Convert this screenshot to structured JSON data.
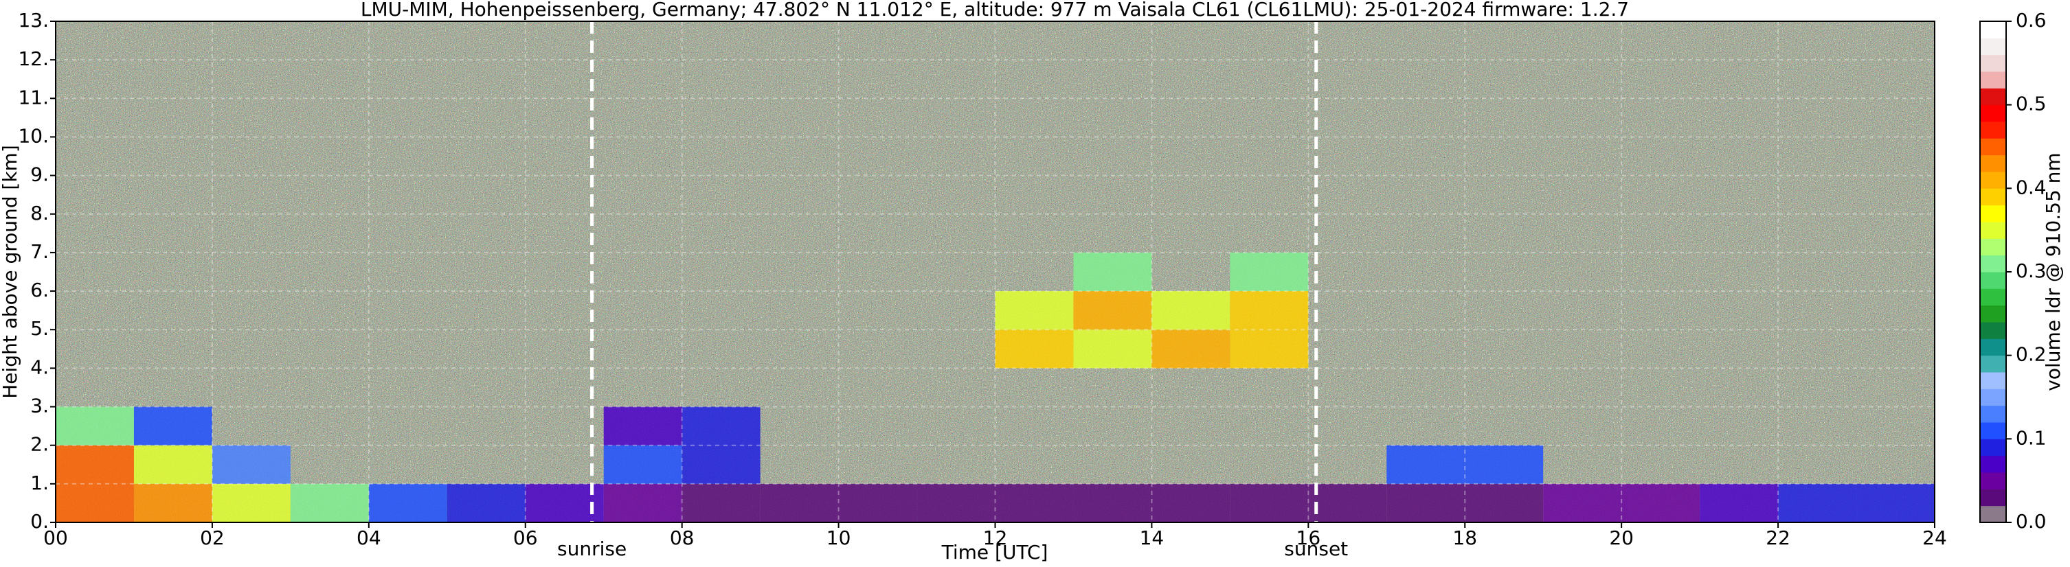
{
  "chart_data": {
    "type": "heatmap",
    "title": "LMU-MIM, Hohenpeissenberg, Germany; 47.802° N 11.012° E, altitude: 977 m    Vaisala CL61 (CL61LMU): 25-01-2024    firmware: 1.2.7",
    "x_label": "Time [UTC]",
    "y_label": "Height above ground [km]",
    "colorbar_label": "volume ldr @ 910.55 nm",
    "xlim": [
      0,
      24
    ],
    "ylim": [
      0,
      13
    ],
    "xticks": [
      {
        "value": 0,
        "label": "00"
      },
      {
        "value": 2,
        "label": "02"
      },
      {
        "value": 4,
        "label": "04"
      },
      {
        "value": 6,
        "label": "06"
      },
      {
        "value": 8,
        "label": "08"
      },
      10,
      12,
      14,
      16,
      18,
      20,
      22,
      24
    ],
    "yticks": [
      {
        "value": 0,
        "label": "0."
      },
      {
        "value": 1,
        "label": "1."
      },
      {
        "value": 2,
        "label": "2."
      },
      {
        "value": 3,
        "label": "3."
      },
      {
        "value": 4,
        "label": "4."
      },
      {
        "value": 5,
        "label": "5."
      },
      {
        "value": 6,
        "label": "6."
      },
      {
        "value": 7,
        "label": "7."
      },
      {
        "value": 8,
        "label": "8."
      },
      {
        "value": 9,
        "label": "9."
      },
      {
        "value": 10,
        "label": "10."
      },
      {
        "value": 11,
        "label": "11."
      },
      {
        "value": 12,
        "label": "12."
      },
      {
        "value": 13,
        "label": "13."
      }
    ],
    "zlim": [
      0,
      0.6
    ],
    "zticks": [
      {
        "value": 0,
        "label": "0.0"
      },
      0.1,
      0.2,
      0.3,
      0.4,
      0.5,
      0.6
    ],
    "grid": true,
    "colormap": [
      "#8a7a8a",
      "#5a0a7a",
      "#6a00a0",
      "#4b00c8",
      "#2020e0",
      "#2050ff",
      "#4a80ff",
      "#7aa4ff",
      "#a0bfff",
      "#40b0b0",
      "#10908a",
      "#108040",
      "#20a020",
      "#30c040",
      "#50d870",
      "#80f090",
      "#b0ff70",
      "#e0ff30",
      "#ffff00",
      "#ffd000",
      "#ffb000",
      "#ff9000",
      "#ff6000",
      "#ff2000",
      "#ff0000",
      "#e01010",
      "#f0b0b0",
      "#f0d8d8",
      "#f4f0f0",
      "#ffffff"
    ],
    "xbins": [
      0,
      1,
      2,
      3,
      4,
      5,
      6,
      7,
      8,
      9,
      10,
      11,
      12,
      13,
      14,
      15,
      16,
      17,
      18,
      19,
      20,
      21,
      22,
      23,
      24
    ],
    "ybins": [
      0,
      1,
      2,
      3,
      4,
      5,
      6,
      7,
      8,
      9,
      10,
      11,
      12,
      13
    ],
    "z": [
      [
        0.45,
        0.42,
        0.35,
        0.3,
        0.1,
        0.08,
        0.06,
        0.04,
        0.03,
        0.03,
        0.03,
        0.02,
        0.02,
        0.02,
        0.02,
        0.02,
        0.03,
        0.03,
        0.03,
        0.04,
        0.05,
        0.06,
        0.08,
        0.08
      ],
      [
        0.45,
        0.35,
        0.12,
        null,
        null,
        null,
        null,
        0.1,
        0.08,
        null,
        null,
        null,
        null,
        null,
        null,
        null,
        null,
        0.1,
        0.1,
        null,
        null,
        null,
        null,
        null
      ],
      [
        0.3,
        0.1,
        null,
        null,
        null,
        null,
        null,
        0.06,
        0.08,
        null,
        null,
        null,
        null,
        null,
        null,
        null,
        null,
        null,
        null,
        null,
        null,
        null,
        null,
        null
      ],
      [
        null,
        null,
        null,
        null,
        null,
        null,
        null,
        null,
        null,
        null,
        null,
        null,
        null,
        null,
        null,
        null,
        null,
        null,
        null,
        null,
        null,
        null,
        null,
        null
      ],
      [
        null,
        null,
        null,
        null,
        null,
        null,
        null,
        null,
        null,
        null,
        null,
        null,
        0.38,
        0.35,
        0.4,
        0.38,
        null,
        null,
        null,
        null,
        null,
        null,
        null,
        null
      ],
      [
        null,
        null,
        null,
        null,
        null,
        null,
        null,
        null,
        null,
        null,
        null,
        null,
        0.35,
        0.4,
        0.35,
        0.38,
        null,
        null,
        null,
        null,
        null,
        null,
        null,
        null
      ],
      [
        null,
        null,
        null,
        null,
        null,
        null,
        null,
        null,
        null,
        null,
        null,
        null,
        null,
        0.3,
        null,
        0.3,
        null,
        null,
        null,
        null,
        null,
        null,
        null,
        null
      ],
      [
        null,
        null,
        null,
        null,
        null,
        null,
        null,
        null,
        null,
        null,
        null,
        null,
        null,
        null,
        null,
        null,
        null,
        null,
        null,
        null,
        null,
        null,
        null,
        null
      ],
      [
        null,
        null,
        null,
        null,
        null,
        null,
        null,
        null,
        null,
        null,
        null,
        null,
        null,
        null,
        null,
        null,
        null,
        null,
        null,
        null,
        null,
        null,
        null,
        null
      ],
      [
        null,
        null,
        null,
        null,
        null,
        null,
        null,
        null,
        null,
        null,
        null,
        null,
        null,
        null,
        null,
        null,
        null,
        null,
        null,
        null,
        null,
        null,
        null,
        null
      ],
      [
        null,
        null,
        null,
        null,
        null,
        null,
        null,
        null,
        null,
        null,
        null,
        null,
        null,
        null,
        null,
        null,
        null,
        null,
        null,
        null,
        null,
        null,
        null,
        null
      ],
      [
        null,
        null,
        null,
        null,
        null,
        null,
        null,
        null,
        null,
        null,
        null,
        null,
        null,
        null,
        null,
        null,
        null,
        null,
        null,
        null,
        null,
        null,
        null,
        null
      ],
      [
        null,
        null,
        null,
        null,
        null,
        null,
        null,
        null,
        null,
        null,
        null,
        null,
        null,
        null,
        null,
        null,
        null,
        null,
        null,
        null,
        null,
        null,
        null,
        null
      ]
    ],
    "annotations": [
      {
        "text": "sunrise",
        "x": 6.85
      },
      {
        "text": "sunset",
        "x": 16.1
      }
    ]
  }
}
